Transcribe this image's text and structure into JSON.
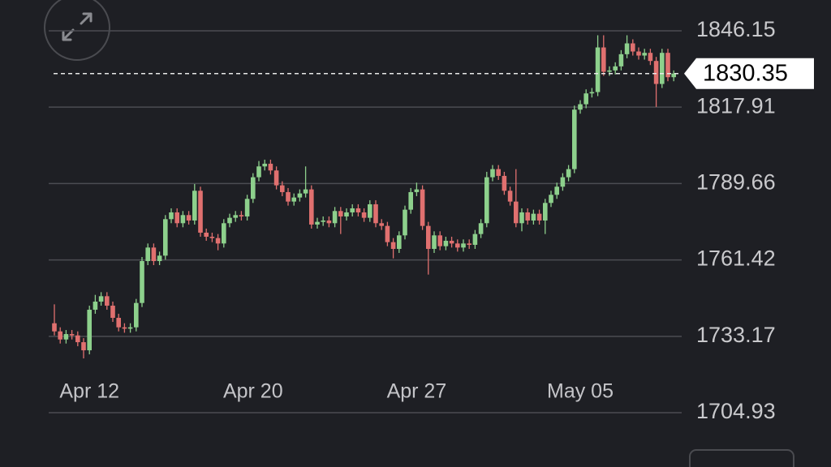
{
  "chart_data": {
    "type": "candlestick",
    "categories": [
      null,
      null,
      null,
      null,
      null,
      null,
      "Apr 12",
      null,
      null,
      null,
      null,
      null,
      null,
      null,
      null,
      null,
      null,
      null,
      null,
      null,
      null,
      null,
      null,
      null,
      null,
      null,
      null,
      null,
      null,
      null,
      null,
      null,
      null,
      null,
      "Apr 20",
      null,
      null,
      null,
      null,
      null,
      null,
      null,
      null,
      null,
      null,
      null,
      null,
      null,
      null,
      null,
      null,
      null,
      null,
      null,
      null,
      null,
      null,
      null,
      null,
      null,
      null,
      null,
      "Apr 27",
      null,
      null,
      null,
      null,
      null,
      null,
      null,
      null,
      null,
      null,
      null,
      null,
      null,
      null,
      null,
      null,
      null,
      null,
      null,
      null,
      null,
      null,
      null,
      null,
      null,
      null,
      null,
      "May 05",
      null,
      null,
      null,
      null,
      null,
      null,
      null,
      null,
      null,
      null,
      null,
      null,
      null,
      null,
      null,
      null
    ],
    "open": [
      1738.0,
      1735.0,
      1732.0,
      1734.0,
      1733.5,
      1731.0,
      1728.0,
      1743.0,
      1746.0,
      1748.0,
      1744.5,
      1740.0,
      1736.5,
      1736.0,
      1736.5,
      1745.5,
      1761.0,
      1766.0,
      1761.0,
      1763.0,
      1776.5,
      1779.0,
      1775.0,
      1778.0,
      1776.0,
      1787.0,
      1771.5,
      1770.0,
      1769.5,
      1767.5,
      1775.0,
      1777.0,
      1778.0,
      1777.5,
      1784.0,
      1792.0,
      1796.0,
      1797.0,
      1794.5,
      1789.0,
      1786.5,
      1783.0,
      1784.5,
      1786.0,
      1787.5,
      1774.5,
      1775.5,
      1776.0,
      1775.0,
      1779.5,
      1777.5,
      1779.0,
      1780.5,
      1779.0,
      1777.0,
      1782.0,
      1775.0,
      1774.0,
      1768.0,
      1765.5,
      1770.5,
      1780.0,
      1786.5,
      1787.5,
      1774.0,
      1765.5,
      1770.5,
      1766.5,
      1768.5,
      1767.5,
      1766.0,
      1767.5,
      1767.0,
      1771.0,
      1775.0,
      1792.0,
      1795.0,
      1792.5,
      1787.0,
      1783.0,
      1775.0,
      1779.0,
      1776.0,
      1778.5,
      1776.0,
      1782.5,
      1785.5,
      1788.5,
      1792.0,
      1795.0,
      1817.0,
      1819.0,
      1823.0,
      1823.5,
      1840.0,
      1831.0,
      1831.5,
      1833.0,
      1837.5,
      1841.5,
      1838.5,
      1837.0,
      1838.0,
      1835.0,
      1826.5,
      1838.0,
      1829.0
    ],
    "high": [
      1745.0,
      1736.5,
      1735.5,
      1735.5,
      1735.0,
      1732.5,
      1744.5,
      1748.5,
      1749.5,
      1749.5,
      1746.0,
      1741.5,
      1738.0,
      1738.0,
      1747.0,
      1762.5,
      1767.5,
      1767.5,
      1764.5,
      1778.0,
      1780.5,
      1780.5,
      1779.5,
      1779.5,
      1789.5,
      1788.5,
      1773.0,
      1771.5,
      1771.0,
      1776.5,
      1778.5,
      1779.5,
      1779.5,
      1785.5,
      1793.5,
      1798.0,
      1798.5,
      1798.5,
      1796.0,
      1790.5,
      1788.0,
      1786.0,
      1787.5,
      1796.0,
      1789.0,
      1777.0,
      1777.5,
      1777.5,
      1781.0,
      1781.0,
      1780.5,
      1782.0,
      1782.0,
      1780.5,
      1783.5,
      1783.5,
      1776.5,
      1775.5,
      1769.5,
      1772.0,
      1781.5,
      1788.0,
      1790.0,
      1789.0,
      1775.5,
      1772.0,
      1772.0,
      1770.0,
      1770.0,
      1769.0,
      1769.0,
      1769.0,
      1772.5,
      1776.5,
      1794.0,
      1796.5,
      1796.5,
      1794.0,
      1788.5,
      1795.0,
      1780.5,
      1780.5,
      1780.0,
      1780.0,
      1784.0,
      1787.0,
      1790.0,
      1793.5,
      1796.5,
      1818.5,
      1820.5,
      1824.5,
      1825.0,
      1844.5,
      1844.5,
      1833.0,
      1834.5,
      1839.0,
      1844.5,
      1843.0,
      1840.0,
      1839.5,
      1839.5,
      1836.5,
      1839.5,
      1839.5,
      1831.5
    ],
    "low": [
      1733.5,
      1730.5,
      1730.5,
      1732.0,
      1729.5,
      1725.0,
      1726.5,
      1741.5,
      1744.5,
      1743.0,
      1738.5,
      1735.0,
      1734.5,
      1734.5,
      1735.0,
      1744.0,
      1759.5,
      1759.5,
      1759.5,
      1761.5,
      1775.0,
      1773.5,
      1773.5,
      1774.5,
      1774.5,
      1770.0,
      1768.5,
      1768.0,
      1765.0,
      1766.0,
      1773.5,
      1775.5,
      1776.0,
      1776.0,
      1782.5,
      1790.5,
      1794.5,
      1793.0,
      1787.5,
      1785.0,
      1781.5,
      1781.5,
      1783.0,
      1784.5,
      1773.0,
      1773.0,
      1774.0,
      1773.5,
      1773.5,
      1771.0,
      1776.0,
      1777.5,
      1777.5,
      1775.5,
      1775.5,
      1773.5,
      1772.5,
      1766.5,
      1762.0,
      1764.0,
      1769.0,
      1778.5,
      1785.0,
      1772.5,
      1756.0,
      1764.0,
      1765.0,
      1765.0,
      1766.0,
      1764.5,
      1764.5,
      1765.5,
      1765.5,
      1769.5,
      1773.5,
      1790.5,
      1791.0,
      1785.5,
      1781.5,
      1773.5,
      1772.0,
      1774.5,
      1774.5,
      1774.5,
      1771.0,
      1781.0,
      1784.0,
      1787.0,
      1790.5,
      1793.5,
      1815.5,
      1817.5,
      1821.5,
      1822.0,
      1829.5,
      1829.5,
      1830.0,
      1831.5,
      1836.0,
      1837.0,
      1835.5,
      1835.5,
      1833.5,
      1818.0,
      1825.0,
      1827.5,
      1827.5
    ],
    "close": [
      1735.0,
      1732.0,
      1734.0,
      1733.5,
      1731.0,
      1728.0,
      1743.0,
      1746.0,
      1748.0,
      1744.5,
      1740.0,
      1736.5,
      1736.0,
      1736.5,
      1745.5,
      1761.0,
      1766.0,
      1761.0,
      1763.0,
      1776.5,
      1779.0,
      1775.0,
      1778.0,
      1776.0,
      1787.0,
      1771.5,
      1770.0,
      1769.5,
      1767.5,
      1775.0,
      1777.0,
      1778.0,
      1777.5,
      1784.0,
      1792.0,
      1796.0,
      1797.0,
      1794.5,
      1789.0,
      1786.5,
      1783.0,
      1784.5,
      1786.0,
      1787.5,
      1774.5,
      1775.5,
      1776.0,
      1775.0,
      1779.5,
      1777.5,
      1779.0,
      1780.5,
      1779.0,
      1777.0,
      1782.0,
      1775.0,
      1774.0,
      1768.0,
      1765.5,
      1770.5,
      1780.0,
      1786.5,
      1787.5,
      1774.0,
      1765.5,
      1770.5,
      1766.5,
      1768.5,
      1767.5,
      1766.0,
      1767.5,
      1767.0,
      1771.0,
      1775.0,
      1792.0,
      1795.0,
      1792.5,
      1787.0,
      1783.0,
      1775.0,
      1779.0,
      1776.0,
      1778.5,
      1776.0,
      1782.5,
      1785.5,
      1788.5,
      1792.0,
      1795.0,
      1817.0,
      1819.0,
      1823.0,
      1823.5,
      1840.0,
      1831.0,
      1831.5,
      1833.0,
      1837.5,
      1841.5,
      1838.5,
      1837.0,
      1838.0,
      1835.0,
      1826.5,
      1838.0,
      1829.0,
      1830.35
    ],
    "last_price": 1830.35,
    "up_color": "#8dd08c",
    "down_color": "#e0706f",
    "ylim": [
      1704.93,
      1846.15
    ],
    "yticks": [
      1704.93,
      1733.17,
      1761.42,
      1789.66,
      1817.91,
      1846.15
    ],
    "grid": true
  }
}
